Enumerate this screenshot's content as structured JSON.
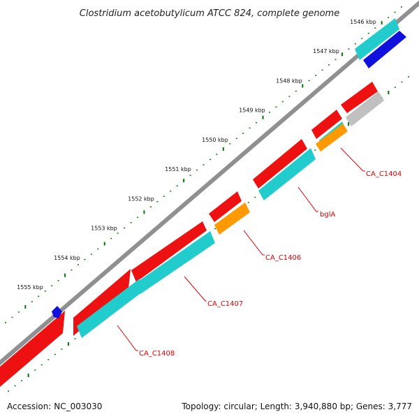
{
  "title": "Clostridium acetobutylicum ATCC 824, complete genome",
  "accession_text": "Accession: NC_003030",
  "summary_text": "Topology: circular; Length: 3,940,880 bp; Genes: 3,777",
  "colors": {
    "backbone": "#707070",
    "forward_gene": "#ee1111",
    "reverse_gene": "#22cccc",
    "orange_feature": "#ff9900",
    "blue_feature": "#1111dd",
    "grey_feature": "#c0c0c0",
    "tick": "#007700",
    "label": "#dd0000"
  },
  "ruler": {
    "unit": "kbp",
    "ticks": [
      {
        "label": "1546 kbp",
        "value": 1546
      },
      {
        "label": "1547 kbp",
        "value": 1547
      },
      {
        "label": "1548 kbp",
        "value": 1548
      },
      {
        "label": "1549 kbp",
        "value": 1549
      },
      {
        "label": "1550 kbp",
        "value": 1550
      },
      {
        "label": "1551 kbp",
        "value": 1551
      },
      {
        "label": "1552 kbp",
        "value": 1552
      },
      {
        "label": "1553 kbp",
        "value": 1553
      },
      {
        "label": "1554 kbp",
        "value": 1554
      },
      {
        "label": "1555 kbp",
        "value": 1555
      }
    ]
  },
  "gene_labels": [
    {
      "id": "ca-c1404",
      "text": "CA_C1404"
    },
    {
      "id": "bgla",
      "text": "bglA"
    },
    {
      "id": "ca-c1406",
      "text": "CA_C1406"
    },
    {
      "id": "ca-c1407",
      "text": "CA_C1407"
    },
    {
      "id": "ca-c1408",
      "text": "CA_C1408"
    }
  ]
}
